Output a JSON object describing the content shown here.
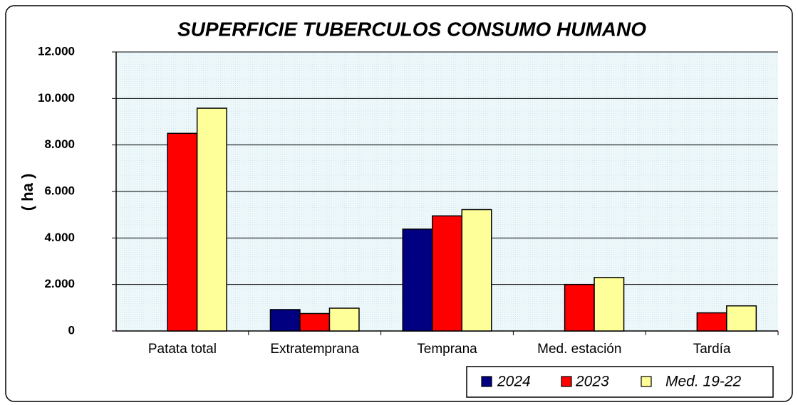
{
  "chart_data": {
    "type": "bar",
    "title": "SUPERFICIE TUBERCULOS CONSUMO HUMANO",
    "y_label": "( ha )",
    "categories": [
      "Patata total",
      "Extratemprana",
      "Temprana",
      "Med. estación",
      "Tardía"
    ],
    "series": [
      {
        "name": "2024",
        "color": "#000080",
        "values": [
          null,
          920,
          4380,
          null,
          null
        ]
      },
      {
        "name": "2023",
        "color": "#ff0000",
        "values": [
          8500,
          750,
          4950,
          2000,
          780
        ]
      },
      {
        "name": "Med. 19-22",
        "color": "#ffff99",
        "values": [
          9580,
          980,
          5220,
          2300,
          1080
        ]
      }
    ],
    "ylim": [
      0,
      12000
    ],
    "yticks": [
      0,
      {
        "value": 2000,
        "label": "2.000"
      },
      {
        "value": 4000,
        "label": "4.000"
      },
      {
        "value": 6000,
        "label": "6.000"
      },
      {
        "value": 8000,
        "label": "8.000"
      },
      {
        "value": 10000,
        "label": "10.000"
      },
      {
        "value": 12000,
        "label": "12.000"
      }
    ],
    "grid": true,
    "legend": "bottom-right"
  }
}
